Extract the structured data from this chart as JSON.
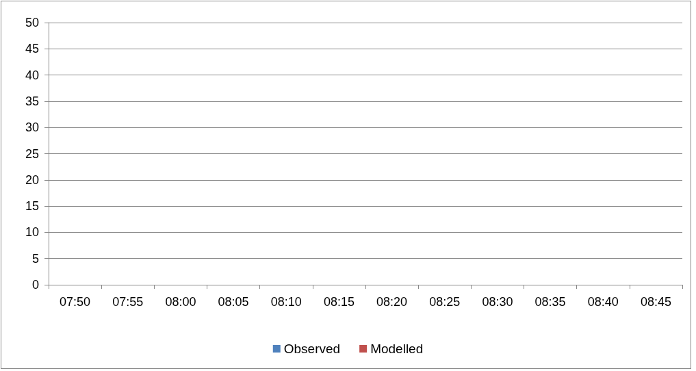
{
  "chart_data": {
    "type": "bar",
    "categories": [
      "07:50",
      "07:55",
      "08:00",
      "08:05",
      "08:10",
      "08:15",
      "08:20",
      "08:25",
      "08:30",
      "08:35",
      "08:40",
      "08:45"
    ],
    "series": [
      {
        "name": "Observed",
        "color": "#4f81bd",
        "values": [
          0,
          0,
          0,
          0,
          0,
          0,
          0,
          0,
          0,
          0,
          0,
          0
        ]
      },
      {
        "name": "Modelled",
        "color": "#c0504d",
        "values": [
          0,
          0,
          0,
          0,
          0,
          0,
          0,
          0,
          0,
          0,
          0,
          0
        ]
      }
    ],
    "ylim": [
      0,
      50
    ],
    "yticks": [
      0,
      5,
      10,
      15,
      20,
      25,
      30,
      35,
      40,
      45,
      50
    ],
    "grid": "y",
    "legend": "bottom"
  }
}
